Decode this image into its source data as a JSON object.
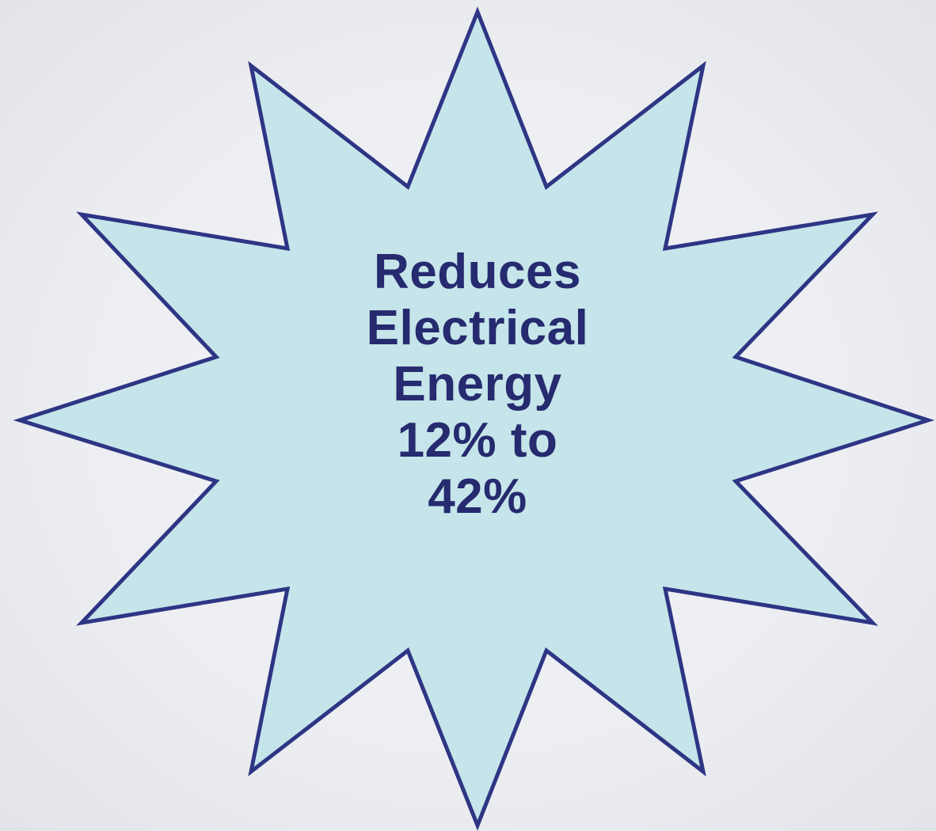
{
  "burst": {
    "lines": [
      "Reduces",
      "Electrical",
      "Energy",
      "12% to",
      "42%"
    ]
  },
  "colors": {
    "fill": "#c5e5ea",
    "stroke": "#2e3584",
    "text": "#262a6e",
    "background": "#eceef2"
  }
}
